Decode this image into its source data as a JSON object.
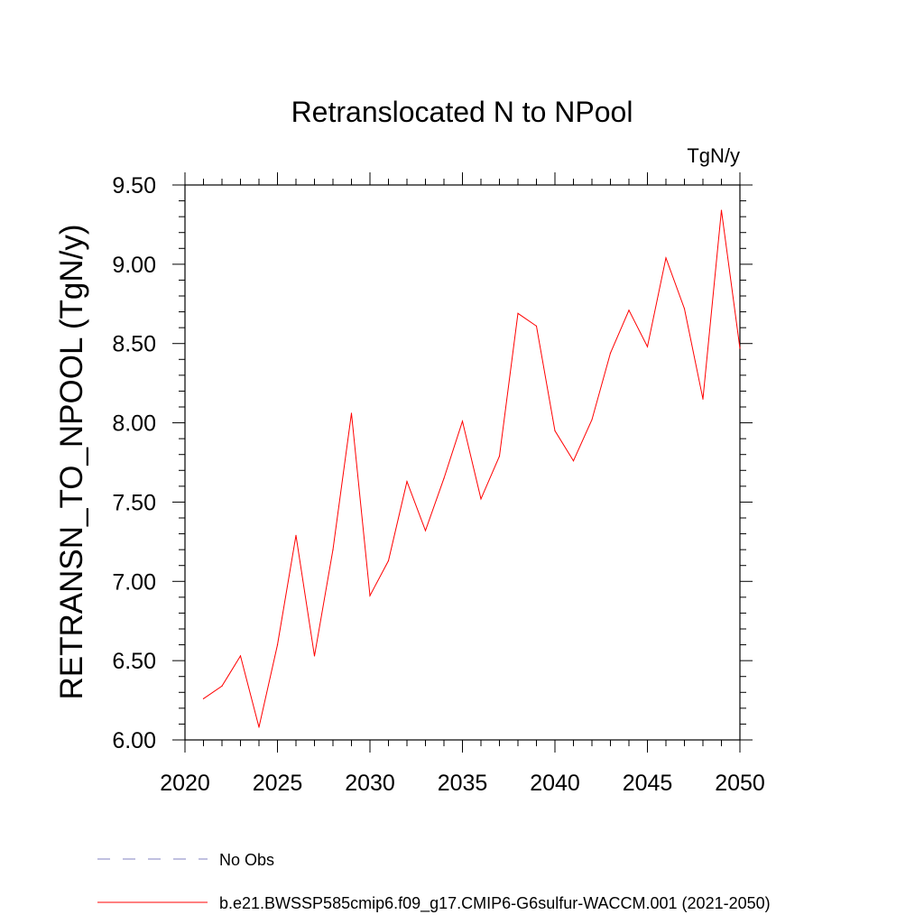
{
  "chart_data": {
    "type": "line",
    "title": "Retranslocated N to NPool",
    "units": "TgN/y",
    "ylabel": "RETRANSN_TO_NPOOL  (TgN/y)",
    "xlabel": "",
    "xlim": [
      2020,
      2050
    ],
    "ylim": [
      6.0,
      9.5
    ],
    "xticks": [
      2020,
      2025,
      2030,
      2035,
      2040,
      2045,
      2050
    ],
    "xtick_labels": [
      "2020",
      "2025",
      "2030",
      "2035",
      "2040",
      "2045",
      "2050"
    ],
    "yticks": [
      6.0,
      6.5,
      7.0,
      7.5,
      8.0,
      8.5,
      9.0,
      9.5
    ],
    "ytick_labels": [
      "6.00",
      "6.50",
      "7.00",
      "7.50",
      "8.00",
      "8.50",
      "9.00",
      "9.50"
    ],
    "grid": false,
    "legend_position": "bottom",
    "series": [
      {
        "name": "b.e21.BWSSP585cmip6.f09_g17.CMIP6-G6sulfur-WACCM.001 (2021-2050)",
        "color": "#ff0000",
        "x": [
          2021,
          2022,
          2023,
          2024,
          2025,
          2026,
          2027,
          2028,
          2029,
          2030,
          2031,
          2032,
          2033,
          2034,
          2035,
          2036,
          2037,
          2038,
          2039,
          2040,
          2041,
          2042,
          2043,
          2044,
          2045,
          2046,
          2047,
          2048,
          2049,
          2050
        ],
        "y": [
          6.26,
          6.34,
          6.53,
          6.08,
          6.6,
          7.29,
          6.53,
          7.2,
          8.06,
          6.91,
          7.13,
          7.63,
          7.32,
          7.65,
          8.01,
          7.52,
          7.79,
          8.69,
          8.61,
          7.95,
          7.76,
          8.02,
          8.44,
          8.71,
          8.48,
          9.04,
          8.72,
          8.15,
          9.34,
          8.47
        ]
      }
    ],
    "legend": [
      {
        "label": "No Obs",
        "color": "#8080c0",
        "style": "dashed"
      },
      {
        "label": "b.e21.BWSSP585cmip6.f09_g17.CMIP6-G6sulfur-WACCM.001 (2021-2050)",
        "color": "#ff0000",
        "style": "solid"
      }
    ]
  }
}
